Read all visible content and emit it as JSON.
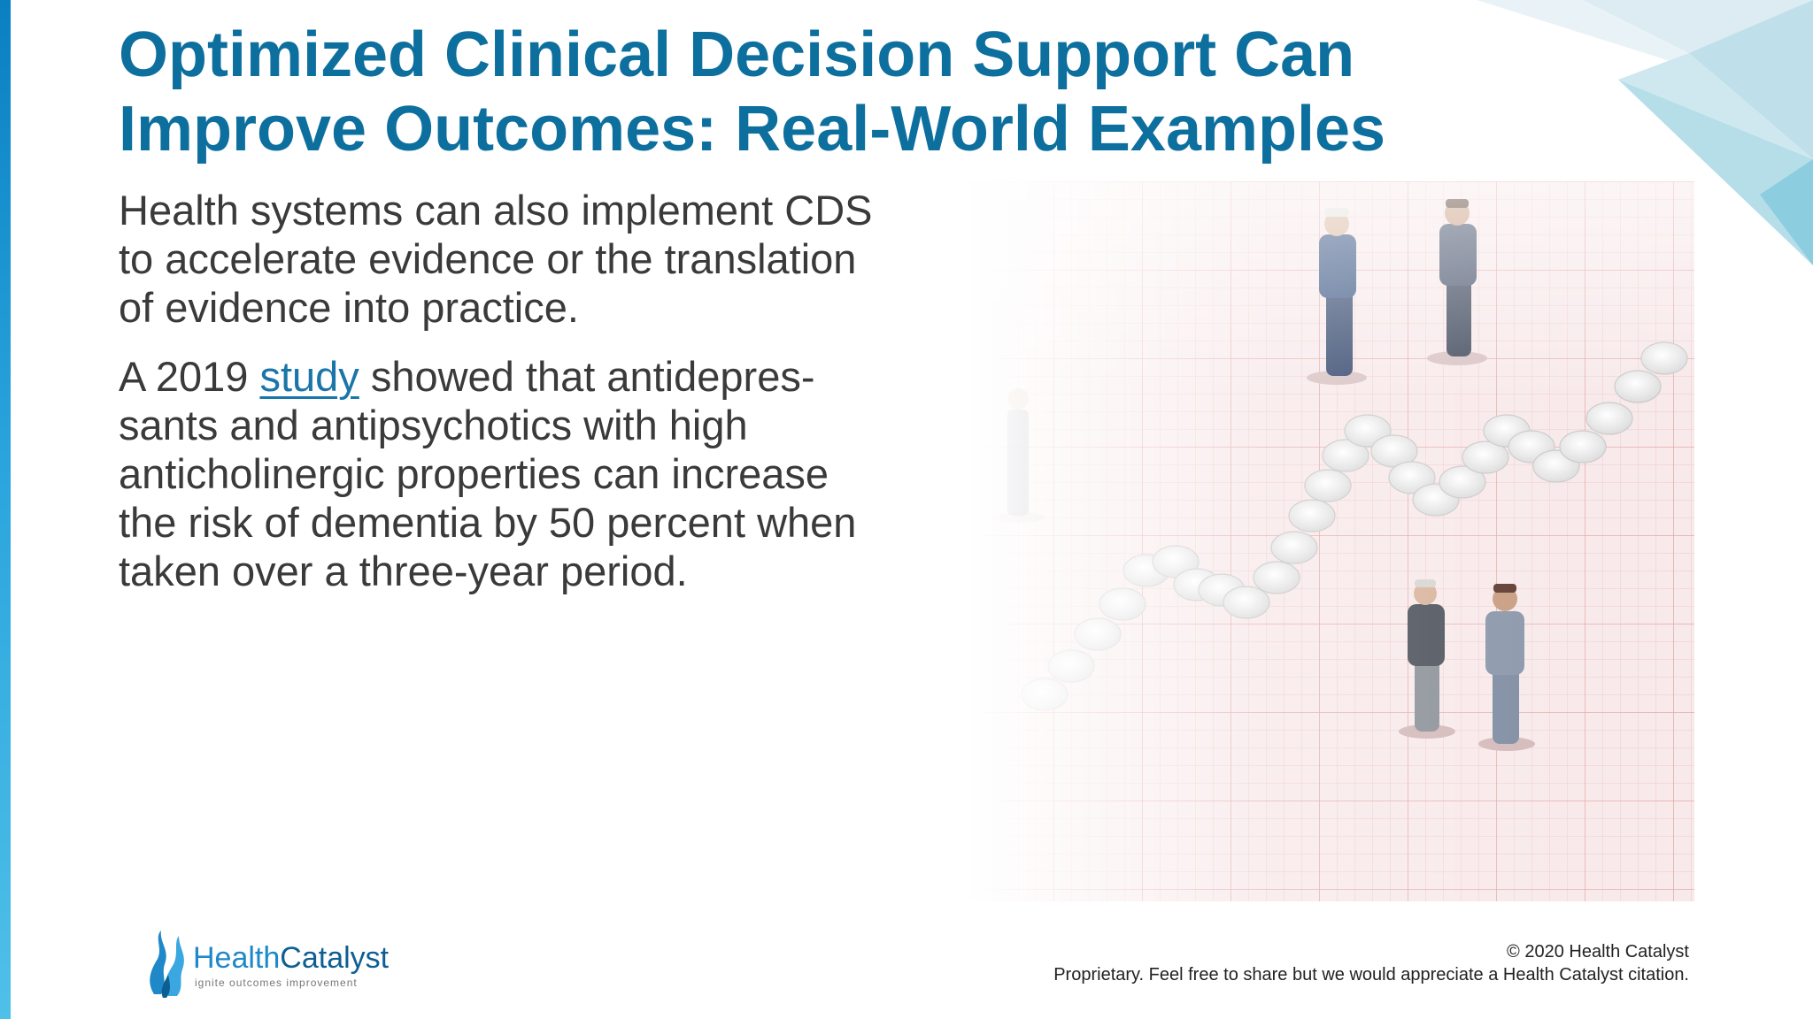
{
  "slide": {
    "title_line1": "Optimized Clinical Decision Support Can",
    "title_line2": "Improve Outcomes: Real-World Examples",
    "paragraph1": {
      "lines": [
        "Health systems can also implement CDS",
        "to accelerate evidence or the translation",
        "of evidence into practice."
      ]
    },
    "paragraph2": {
      "line1_prefix": "A 2019 ",
      "link_text": "study",
      "line1_suffix": " showed that antidepres-",
      "lines_rest": [
        "sants and antipsychotics with high",
        "anticholinergic properties can increase",
        "the risk of dementia by 50 percent when",
        "taken over a three-year period."
      ]
    }
  },
  "logo": {
    "word_part1": "Health",
    "word_part2": "Catalyst",
    "tagline": "ignite outcomes improvement"
  },
  "footer": {
    "copyright": "© 2020 Health Catalyst",
    "notice": "Proprietary. Feel free to share but we would appreciate a Health Catalyst citation."
  },
  "colors": {
    "title": "#0d6f9e",
    "body": "#3a3a3a",
    "link": "#1a76a8",
    "accent_bar": "#1e8fcf"
  },
  "illustration": {
    "icon": "businessmen-figurines-on-pills-ecg-paper-image"
  }
}
